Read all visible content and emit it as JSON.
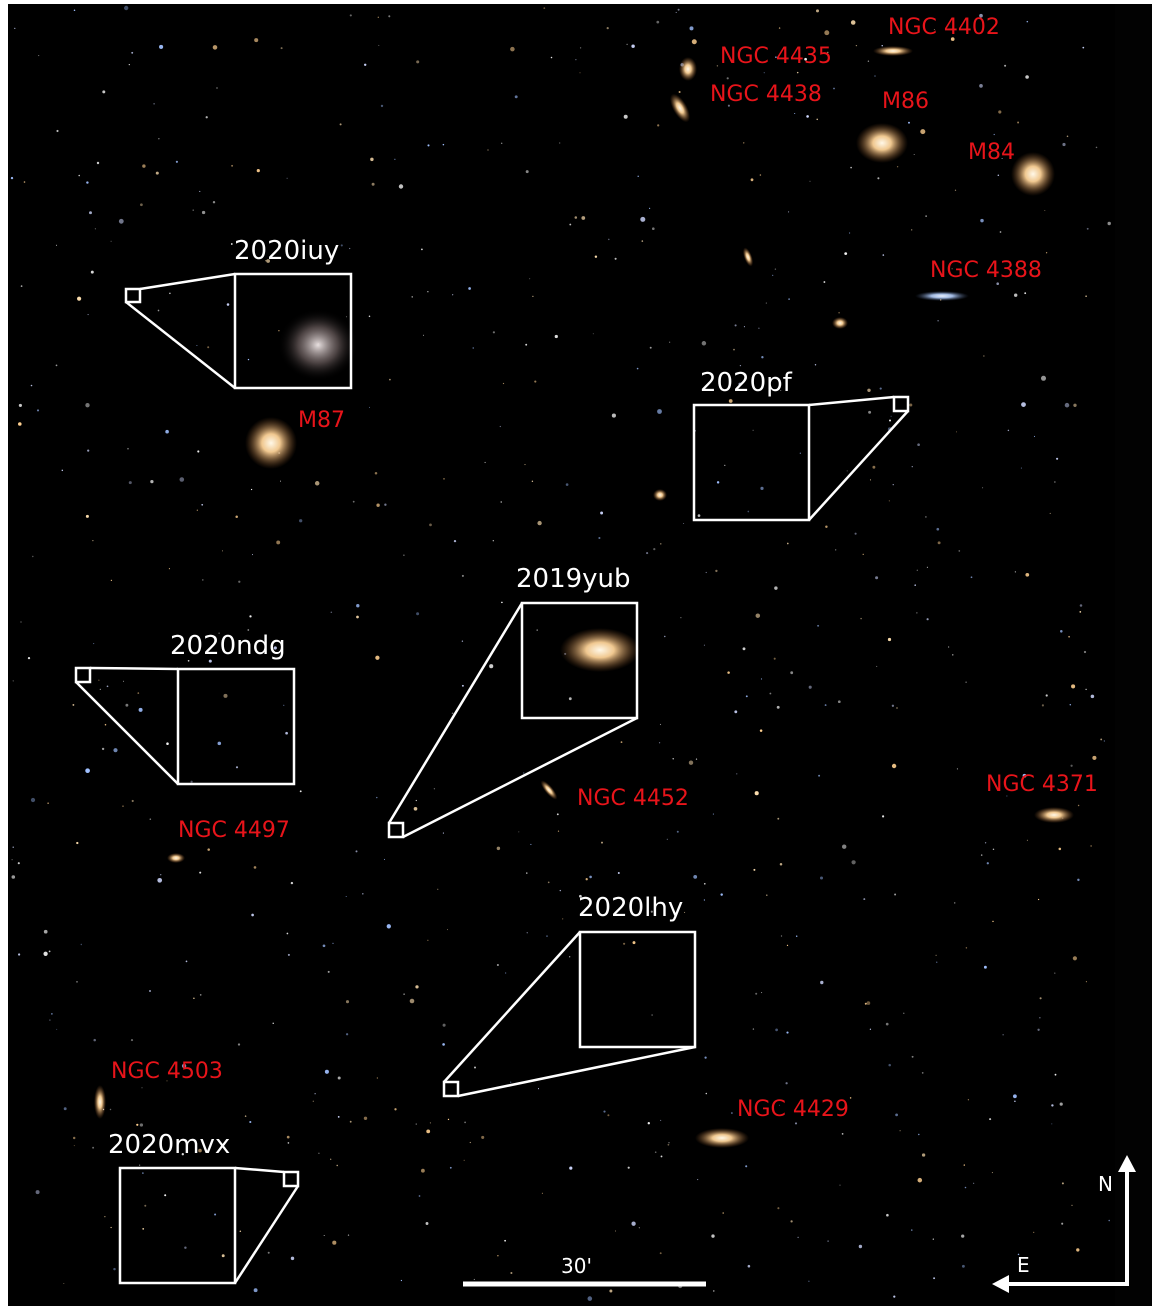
{
  "galaxies": [
    {
      "label": "NGC 4402"
    },
    {
      "label": "NGC 4435"
    },
    {
      "label": "NGC 4438"
    },
    {
      "label": "M86"
    },
    {
      "label": "M84"
    },
    {
      "label": "NGC 4388"
    },
    {
      "label": "M87"
    },
    {
      "label": "NGC 4452"
    },
    {
      "label": "NGC 4371"
    },
    {
      "label": "NGC 4497"
    },
    {
      "label": "NGC 4503"
    },
    {
      "label": "NGC 4429"
    }
  ],
  "transients": [
    {
      "label": "2020iuy"
    },
    {
      "label": "2020pf"
    },
    {
      "label": "2019yub"
    },
    {
      "label": "2020ndg"
    },
    {
      "label": "2020lhy"
    },
    {
      "label": "2020mvx"
    }
  ],
  "scale_bar": {
    "label": "30'"
  },
  "compass": {
    "north": "N",
    "east": "E"
  }
}
